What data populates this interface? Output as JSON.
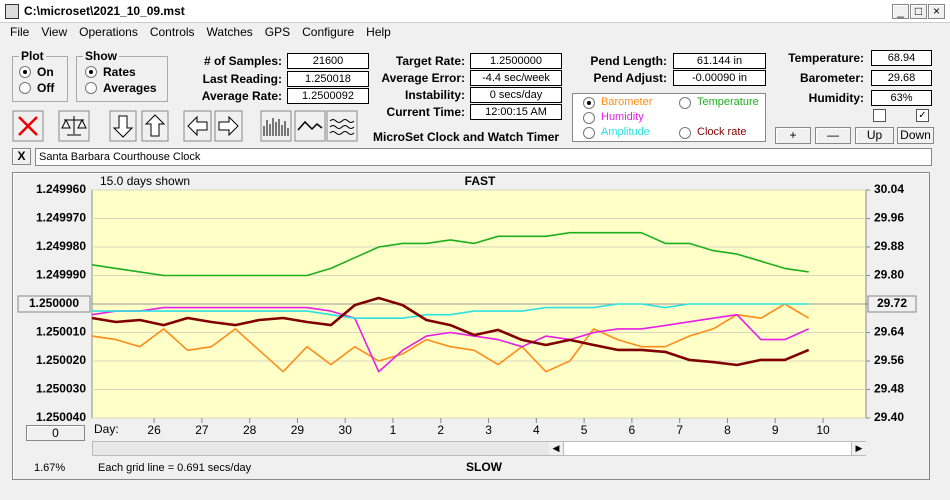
{
  "window": {
    "title": "C:\\microset\\2021_10_09.mst"
  },
  "menu": [
    "File",
    "View",
    "Operations",
    "Controls",
    "Watches",
    "GPS",
    "Configure",
    "Help"
  ],
  "plot_group": {
    "title": "Plot",
    "options": [
      "On",
      "Off"
    ]
  },
  "show_group": {
    "title": "Show",
    "options": [
      "Rates",
      "Averages"
    ]
  },
  "fields": {
    "samples": {
      "label": "# of Samples:",
      "value": "21600"
    },
    "last_reading": {
      "label": "Last Reading:",
      "value": "1.250018"
    },
    "average_rate": {
      "label": "Average Rate:",
      "value": "1.2500092"
    },
    "target_rate": {
      "label": "Target Rate:",
      "value": "1.2500000"
    },
    "average_error": {
      "label": "Average Error:",
      "value": "-4.4 sec/week"
    },
    "instability": {
      "label": "Instability:",
      "value": "0 secs/day"
    },
    "current_time": {
      "label": "Current Time:",
      "value": "12:00:15 AM"
    },
    "pend_length": {
      "label": "Pend Length:",
      "value": "61.144 in"
    },
    "pend_adjust": {
      "label": "Pend Adjust:",
      "value": "-0.00090 in"
    },
    "temperature": {
      "label": "Temperature:",
      "value": "68.94"
    },
    "barometer": {
      "label": "Barometer:",
      "value": "29.68"
    },
    "humidity": {
      "label": "Humidity:",
      "value": "63%"
    }
  },
  "app_title": "MicroSet Clock and Watch Timer",
  "env_buttons": [
    "+",
    "—",
    "Up",
    "Down"
  ],
  "clock_name": "Santa Barbara Courthouse Clock",
  "close_button": "X",
  "offset_button": "0",
  "scale_label": "1.67%",
  "chart_data": {
    "type": "line",
    "top_label": "FAST",
    "bottom_label": "SLOW",
    "span_label": "15.0 days shown",
    "x_label": "Day:",
    "grid_note": "Each grid line = 0.691 secs/day",
    "x": [
      -1.3,
      -0.8,
      -0.3,
      0.2,
      0.7,
      1.2,
      1.7,
      2.2,
      2.7,
      3.2,
      3.7,
      4.2,
      4.7,
      5.2,
      5.7,
      6.2,
      6.7,
      7.2,
      7.7,
      8.2,
      8.7,
      9.2,
      9.7,
      10.2,
      10.7,
      11.2,
      11.7,
      12.2,
      12.7,
      13.2,
      13.7
    ],
    "xlim": [
      -1.3,
      14.9
    ],
    "xticks": [
      {
        "value": 0,
        "label": "26"
      },
      {
        "value": 1,
        "label": "27"
      },
      {
        "value": 2,
        "label": "28"
      },
      {
        "value": 3,
        "label": "29"
      },
      {
        "value": 4,
        "label": "30"
      },
      {
        "value": 5,
        "label": "1"
      },
      {
        "value": 6,
        "label": "2"
      },
      {
        "value": 7,
        "label": "3"
      },
      {
        "value": 8,
        "label": "4"
      },
      {
        "value": 9,
        "label": "5"
      },
      {
        "value": 10,
        "label": "6"
      },
      {
        "value": 11,
        "label": "7"
      },
      {
        "value": 12,
        "label": "8"
      },
      {
        "value": 13,
        "label": "9"
      },
      {
        "value": 14,
        "label": "10"
      }
    ],
    "ylim": [
      1.25004,
      1.24996
    ],
    "yticks": [
      {
        "value": 1.24996,
        "label": "1.249960"
      },
      {
        "value": 1.24997,
        "label": "1.249970"
      },
      {
        "value": 1.24998,
        "label": "1.249980"
      },
      {
        "value": 1.24999,
        "label": "1.249990"
      },
      {
        "value": 1.25001,
        "label": "1.250010"
      },
      {
        "value": 1.25002,
        "label": "1.250020"
      },
      {
        "value": 1.25003,
        "label": "1.250030"
      },
      {
        "value": 1.25004,
        "label": "1.250040"
      }
    ],
    "y_ref": {
      "value": 1.25,
      "label": "1.250000"
    },
    "y2lim": [
      29.4,
      30.04
    ],
    "y2ticks": [
      30.04,
      29.96,
      29.88,
      {
        "value": 29.8,
        "label": "29.80"
      },
      29.64,
      29.56,
      29.48,
      {
        "value": 29.4,
        "label": "29.40"
      }
    ],
    "y2_ref": {
      "value": 29.72,
      "label": "29.72"
    },
    "grid": true,
    "series": [
      {
        "name": "Barometer",
        "color": "#ff8c1a",
        "axis": "y2",
        "values": [
          29.63,
          29.62,
          29.6,
          29.65,
          29.59,
          29.6,
          29.65,
          29.59,
          29.53,
          29.6,
          29.55,
          29.6,
          29.56,
          29.58,
          29.62,
          29.6,
          29.59,
          29.55,
          29.6,
          29.53,
          29.56,
          29.65,
          29.62,
          29.6,
          29.6,
          29.63,
          29.65,
          29.69,
          29.68,
          29.72,
          29.68
        ]
      },
      {
        "name": "Temperature",
        "color": "#1fae1f",
        "axis": "y2",
        "values": [
          29.83,
          29.82,
          29.81,
          29.8,
          29.8,
          29.8,
          29.8,
          29.8,
          29.8,
          29.8,
          29.82,
          29.85,
          29.88,
          29.89,
          29.89,
          29.9,
          29.89,
          29.91,
          29.91,
          29.91,
          29.92,
          29.92,
          29.92,
          29.92,
          29.89,
          29.89,
          29.87,
          29.86,
          29.84,
          29.82,
          29.81
        ]
      },
      {
        "name": "Humidity",
        "color": "#e61ee6",
        "axis": "y2",
        "values": [
          29.69,
          29.7,
          29.7,
          29.71,
          29.71,
          29.71,
          29.71,
          29.71,
          29.71,
          29.71,
          29.7,
          29.68,
          29.53,
          29.59,
          29.63,
          29.64,
          29.63,
          29.62,
          29.6,
          29.63,
          29.62,
          29.64,
          29.65,
          29.65,
          29.66,
          29.67,
          29.68,
          29.69,
          29.62,
          29.62,
          29.65
        ]
      },
      {
        "name": "Amplitude",
        "color": "#2ee0e0",
        "axis": "y2",
        "values": [
          29.7,
          29.7,
          29.7,
          29.7,
          29.7,
          29.7,
          29.7,
          29.7,
          29.7,
          29.7,
          29.69,
          29.68,
          29.68,
          29.68,
          29.69,
          29.69,
          29.7,
          29.7,
          29.7,
          29.71,
          29.71,
          29.71,
          29.72,
          29.72,
          29.71,
          29.72,
          29.72,
          29.72,
          29.72,
          29.72,
          29.72
        ]
      },
      {
        "name": "Clock rate",
        "color": "#800000",
        "values": [
          1.2500049,
          1.2500063,
          1.2500056,
          1.2500074,
          1.2500049,
          1.2500063,
          1.2500074,
          1.2500056,
          1.2500049,
          1.2500063,
          1.2500074,
          1.2500004,
          1.2499979,
          1.2500004,
          1.2500056,
          1.2500074,
          1.2500109,
          1.2500091,
          1.2500126,
          1.2500144,
          1.2500126,
          1.2500144,
          1.2500161,
          1.2500161,
          1.2500168,
          1.2500196,
          1.2500204,
          1.2500214,
          1.2500196,
          1.2500196,
          1.2500161
        ]
      }
    ]
  }
}
